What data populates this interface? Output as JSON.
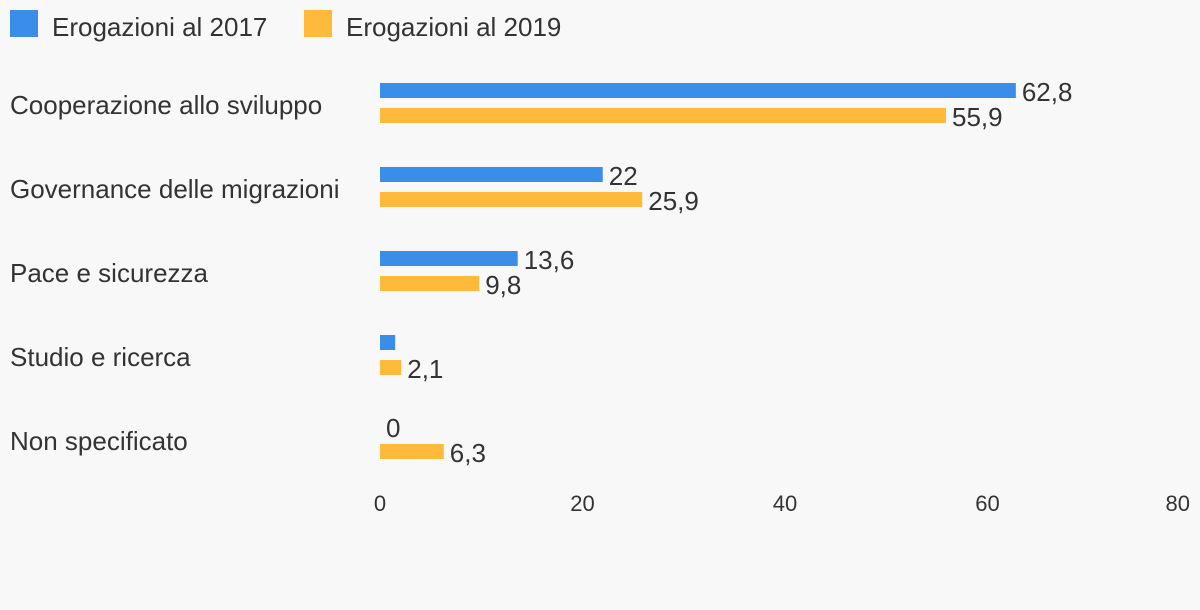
{
  "chart_data": {
    "type": "bar",
    "orientation": "horizontal",
    "categories": [
      "Cooperazione allo sviluppo",
      "Governance delle migrazioni",
      "Pace e sicurezza",
      "Studio e ricerca",
      "Non specificato"
    ],
    "series": [
      {
        "name": "Erogazioni al 2017",
        "color": "#3a8ee9",
        "values": [
          62.8,
          22,
          13.6,
          1.5,
          0
        ],
        "labels": [
          "62,8",
          "22",
          "13,6",
          "",
          "0"
        ]
      },
      {
        "name": "Erogazioni al 2019",
        "color": "#ffba3b",
        "values": [
          55.9,
          25.9,
          9.8,
          2.1,
          6.3
        ],
        "labels": [
          "55,9",
          "25,9",
          "9,8",
          "2,1",
          "6,3"
        ]
      }
    ],
    "xlim": [
      0,
      80
    ],
    "xticks": [
      "0",
      "20",
      "40",
      "60",
      "80"
    ],
    "grid": false,
    "legend_position": "top-left"
  }
}
